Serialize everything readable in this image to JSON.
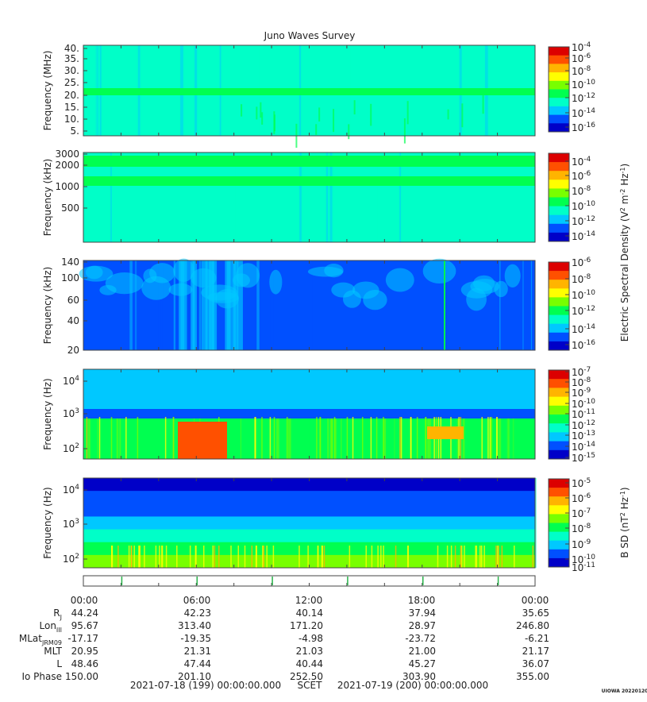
{
  "title": "Juno Waves Survey",
  "footer": {
    "start": "2021-07-18 (199) 00:00:00.000",
    "mid": "SCET",
    "end": "2021-07-19 (200) 00:00:00.000"
  },
  "stamp": "UIOWA 20220120",
  "colors": {
    "colormap": [
      "#0000c8",
      "#0050ff",
      "#00c8ff",
      "#00ffc8",
      "#00ff50",
      "#78ff00",
      "#ffff00",
      "#ffb400",
      "#ff5000",
      "#dc0000"
    ]
  },
  "chart_data": [
    {
      "type": "heatmap",
      "panel": "hfr-high",
      "ylabel": "Frequency (MHz)",
      "yticks": [
        "40.",
        "35.",
        "30.",
        "25.",
        "20.",
        "15.",
        "10.",
        "5."
      ],
      "ylim": [
        3,
        41
      ],
      "colorbar_ticks": [
        "10^-4",
        "10^-6",
        "10^-8",
        "10^-10",
        "10^-12",
        "10^-14",
        "10^-16"
      ],
      "features": [
        "steady emission band near 21 MHz",
        "weak broadband bursts near 07:00"
      ]
    },
    {
      "type": "heatmap",
      "panel": "hfr-low",
      "ylabel": "Frequency (kHz)",
      "yticks": [
        "3000",
        "2000",
        "1000",
        "500"
      ],
      "ylim": [
        140,
        3000
      ],
      "colorbar_ticks": [
        "10^-4",
        "10^-6",
        "10^-8",
        "10^-10",
        "10^-12",
        "10^-14"
      ],
      "features": [
        "bands near 2200 kHz and 1150 kHz"
      ]
    },
    {
      "type": "heatmap",
      "panel": "lfr",
      "ylabel": "Frequency (kHz)",
      "yticks": [
        "140",
        "100",
        "60",
        "40",
        "20"
      ],
      "ylim": [
        20,
        140
      ],
      "colorbar_ticks": [
        "10^-6",
        "10^-8",
        "10^-10",
        "10^-12",
        "10^-14",
        "10^-16"
      ],
      "colorbar_label": "Electric Spectral Density (V^2 m^-2 Hz^-1)",
      "features": [
        "streaks 05:40-07:40",
        "patches 12:00-24:00"
      ]
    },
    {
      "type": "heatmap",
      "panel": "e-field-low",
      "ylabel": "Frequency (Hz)",
      "yticks": [
        "10^4",
        "10^3",
        "10^2"
      ],
      "ylim": [
        50,
        20000
      ],
      "colorbar_ticks": [
        "10^-7",
        "10^-8",
        "10^-9",
        "10^-10",
        "10^-11",
        "10^-12",
        "10^-13",
        "10^-14",
        "10^-15"
      ],
      "features": [
        "intense emission 05:00-07:30 below 1 kHz",
        "emission 17:30-19:40 near 300 Hz"
      ]
    },
    {
      "type": "heatmap",
      "panel": "b-field",
      "ylabel": "Frequency (Hz)",
      "yticks": [
        "10^4",
        "10^3",
        "10^2"
      ],
      "ylim": [
        50,
        20000
      ],
      "colorbar_ticks": [
        "10^-5",
        "10^-6",
        "10^-7",
        "10^-8",
        "10^-9",
        "10^-10",
        "10^-11"
      ],
      "colorbar_label": "B SD (nT^2 Hz^-1)",
      "features": [
        "intensity rising toward low frequency"
      ]
    }
  ],
  "ephemeris": {
    "labels": [
      "R_J",
      "Lon_III",
      "MLat_JRM09",
      "MLT",
      "L",
      "Io Phase"
    ],
    "times": [
      "00:00",
      "06:00",
      "12:00",
      "18:00",
      "00:00"
    ],
    "rows": [
      [
        "44.24",
        "42.23",
        "40.14",
        "37.94",
        "35.65"
      ],
      [
        "95.67",
        "313.40",
        "171.20",
        "28.97",
        "246.80"
      ],
      [
        "-17.17",
        "-19.35",
        "-4.98",
        "-23.72",
        "-6.21"
      ],
      [
        "20.95",
        "21.31",
        "21.03",
        "21.00",
        "21.17"
      ],
      [
        "48.46",
        "47.44",
        "40.44",
        "45.27",
        "36.07"
      ],
      [
        "150.00",
        "201.10",
        "252.50",
        "303.90",
        "355.00"
      ]
    ]
  }
}
